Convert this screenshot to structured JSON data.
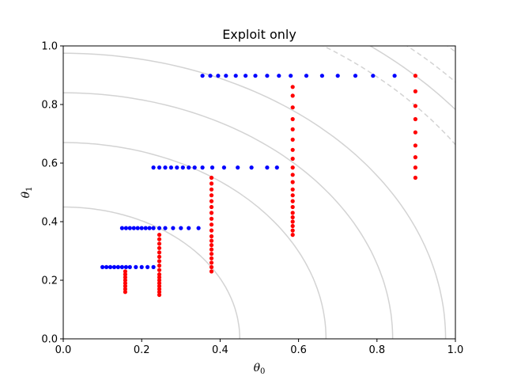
{
  "chart_data": {
    "type": "scatter",
    "title": "Exploit only",
    "xlabel": "θ",
    "xlabel_sub": "0",
    "ylabel": "θ",
    "ylabel_sub": "1",
    "xlim": [
      0,
      1
    ],
    "ylim": [
      0,
      1
    ],
    "xticks": [
      0.0,
      0.2,
      0.4,
      0.6,
      0.8,
      1.0
    ],
    "yticks": [
      0.0,
      0.2,
      0.4,
      0.6,
      0.8,
      1.0
    ],
    "xtick_labels": [
      "0.0",
      "0.2",
      "0.4",
      "0.6",
      "0.8",
      "1.0"
    ],
    "ytick_labels": [
      "0.0",
      "0.2",
      "0.4",
      "0.6",
      "0.8",
      "1.0"
    ],
    "grid": false,
    "contours": {
      "color": "#d3d3d3",
      "solid_radii": [
        0.45,
        0.67,
        0.84,
        0.975,
        1.27
      ],
      "dashed_radii": [
        1.2,
        1.33,
        1.4
      ]
    },
    "series": [
      {
        "color": "#0000ff",
        "points": [
          [
            0.1,
            0.245
          ],
          [
            0.11,
            0.245
          ],
          [
            0.12,
            0.245
          ],
          [
            0.13,
            0.245
          ],
          [
            0.14,
            0.245
          ],
          [
            0.15,
            0.245
          ],
          [
            0.16,
            0.245
          ],
          [
            0.17,
            0.245
          ],
          [
            0.185,
            0.245
          ],
          [
            0.2,
            0.245
          ],
          [
            0.215,
            0.245
          ],
          [
            0.23,
            0.245
          ],
          [
            0.15,
            0.378
          ],
          [
            0.16,
            0.378
          ],
          [
            0.17,
            0.378
          ],
          [
            0.18,
            0.378
          ],
          [
            0.19,
            0.378
          ],
          [
            0.2,
            0.378
          ],
          [
            0.21,
            0.378
          ],
          [
            0.22,
            0.378
          ],
          [
            0.23,
            0.378
          ],
          [
            0.245,
            0.378
          ],
          [
            0.26,
            0.378
          ],
          [
            0.28,
            0.378
          ],
          [
            0.3,
            0.378
          ],
          [
            0.32,
            0.378
          ],
          [
            0.345,
            0.378
          ],
          [
            0.23,
            0.585
          ],
          [
            0.245,
            0.585
          ],
          [
            0.26,
            0.585
          ],
          [
            0.275,
            0.585
          ],
          [
            0.29,
            0.585
          ],
          [
            0.305,
            0.585
          ],
          [
            0.32,
            0.585
          ],
          [
            0.335,
            0.585
          ],
          [
            0.355,
            0.585
          ],
          [
            0.38,
            0.585
          ],
          [
            0.41,
            0.585
          ],
          [
            0.445,
            0.585
          ],
          [
            0.48,
            0.585
          ],
          [
            0.52,
            0.585
          ],
          [
            0.545,
            0.585
          ],
          [
            0.355,
            0.898
          ],
          [
            0.375,
            0.898
          ],
          [
            0.395,
            0.898
          ],
          [
            0.415,
            0.898
          ],
          [
            0.44,
            0.898
          ],
          [
            0.465,
            0.898
          ],
          [
            0.49,
            0.898
          ],
          [
            0.52,
            0.898
          ],
          [
            0.55,
            0.898
          ],
          [
            0.58,
            0.898
          ],
          [
            0.62,
            0.898
          ],
          [
            0.66,
            0.898
          ],
          [
            0.7,
            0.898
          ],
          [
            0.745,
            0.898
          ],
          [
            0.79,
            0.898
          ],
          [
            0.845,
            0.898
          ]
        ]
      },
      {
        "color": "#ff0000",
        "points": [
          [
            0.158,
            0.16
          ],
          [
            0.158,
            0.17
          ],
          [
            0.158,
            0.18
          ],
          [
            0.158,
            0.19
          ],
          [
            0.158,
            0.2
          ],
          [
            0.158,
            0.21
          ],
          [
            0.158,
            0.22
          ],
          [
            0.158,
            0.23
          ],
          [
            0.245,
            0.15
          ],
          [
            0.245,
            0.16
          ],
          [
            0.245,
            0.17
          ],
          [
            0.245,
            0.18
          ],
          [
            0.245,
            0.19
          ],
          [
            0.245,
            0.2
          ],
          [
            0.245,
            0.21
          ],
          [
            0.245,
            0.22
          ],
          [
            0.245,
            0.235
          ],
          [
            0.245,
            0.25
          ],
          [
            0.245,
            0.265
          ],
          [
            0.245,
            0.28
          ],
          [
            0.245,
            0.295
          ],
          [
            0.245,
            0.31
          ],
          [
            0.245,
            0.325
          ],
          [
            0.245,
            0.34
          ],
          [
            0.245,
            0.355
          ],
          [
            0.378,
            0.23
          ],
          [
            0.378,
            0.245
          ],
          [
            0.378,
            0.26
          ],
          [
            0.378,
            0.275
          ],
          [
            0.378,
            0.29
          ],
          [
            0.378,
            0.305
          ],
          [
            0.378,
            0.32
          ],
          [
            0.378,
            0.335
          ],
          [
            0.378,
            0.35
          ],
          [
            0.378,
            0.37
          ],
          [
            0.378,
            0.39
          ],
          [
            0.378,
            0.41
          ],
          [
            0.378,
            0.43
          ],
          [
            0.378,
            0.45
          ],
          [
            0.378,
            0.47
          ],
          [
            0.378,
            0.49
          ],
          [
            0.378,
            0.51
          ],
          [
            0.378,
            0.53
          ],
          [
            0.378,
            0.55
          ],
          [
            0.585,
            0.355
          ],
          [
            0.585,
            0.37
          ],
          [
            0.585,
            0.385
          ],
          [
            0.585,
            0.4
          ],
          [
            0.585,
            0.415
          ],
          [
            0.585,
            0.43
          ],
          [
            0.585,
            0.45
          ],
          [
            0.585,
            0.47
          ],
          [
            0.585,
            0.49
          ],
          [
            0.585,
            0.51
          ],
          [
            0.585,
            0.535
          ],
          [
            0.585,
            0.56
          ],
          [
            0.585,
            0.585
          ],
          [
            0.585,
            0.615
          ],
          [
            0.585,
            0.645
          ],
          [
            0.585,
            0.68
          ],
          [
            0.585,
            0.715
          ],
          [
            0.585,
            0.75
          ],
          [
            0.585,
            0.79
          ],
          [
            0.585,
            0.83
          ],
          [
            0.585,
            0.86
          ],
          [
            0.898,
            0.55
          ],
          [
            0.898,
            0.585
          ],
          [
            0.898,
            0.62
          ],
          [
            0.898,
            0.66
          ],
          [
            0.898,
            0.705
          ],
          [
            0.898,
            0.75
          ],
          [
            0.898,
            0.795
          ],
          [
            0.898,
            0.845
          ],
          [
            0.898,
            0.898
          ]
        ]
      }
    ]
  }
}
